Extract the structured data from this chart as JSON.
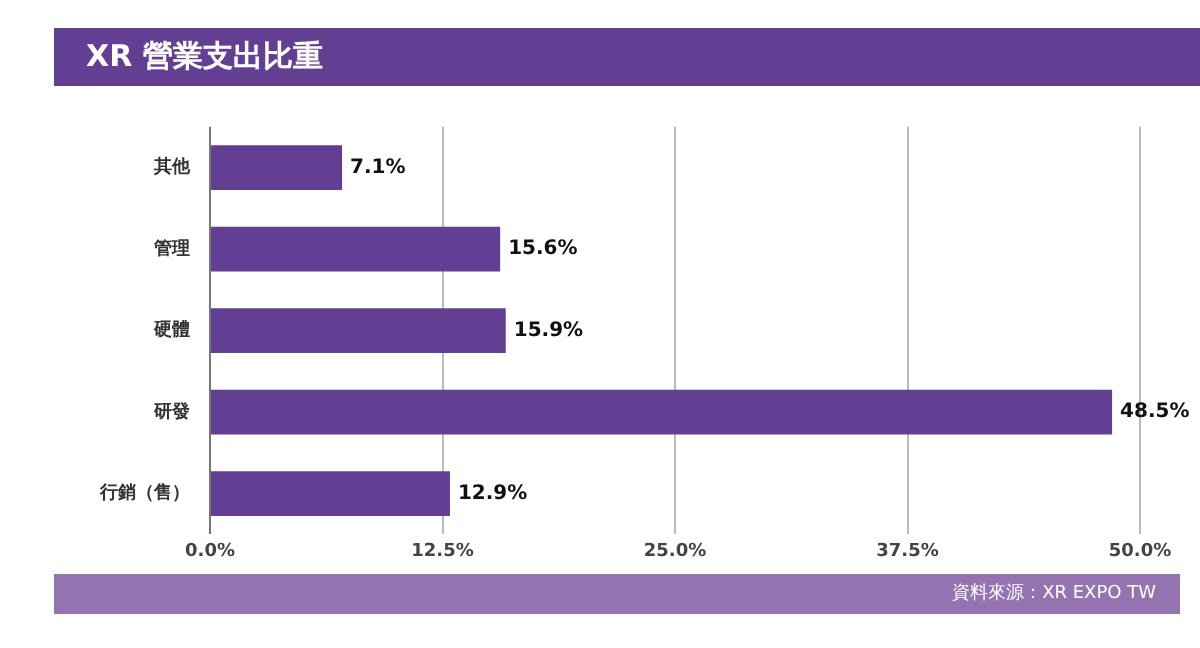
{
  "chart_data": {
    "type": "bar",
    "orientation": "horizontal",
    "title": "XR 營業支出比重",
    "categories": [
      "其他",
      "管理",
      "硬體",
      "研發",
      "行銷（售）"
    ],
    "values": [
      7.1,
      15.6,
      15.9,
      48.5,
      12.9
    ],
    "color": "#633f93",
    "value_labels": [
      "7.1%",
      "15.6%",
      "15.9%",
      "48.5%",
      "12.9%"
    ],
    "xlim": [
      0,
      50
    ],
    "xticks": [
      {
        "value": 0,
        "label": "0.0%"
      },
      {
        "value": 12.5,
        "label": "12.5%"
      },
      {
        "value": 25,
        "label": "25.0%"
      },
      {
        "value": 37.5,
        "label": "37.5%"
      },
      {
        "value": 50,
        "label": "50.0%"
      }
    ],
    "grid": "x",
    "legend": false,
    "annotations": [
      "資料來源：XR EXPO TW"
    ]
  }
}
